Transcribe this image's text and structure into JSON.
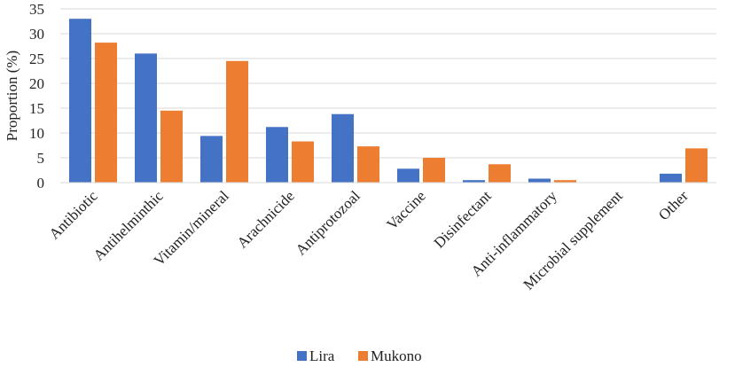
{
  "chart_data": {
    "type": "bar",
    "title": "",
    "xlabel": "",
    "ylabel": "Proportion (%)",
    "ylim": [
      0,
      35
    ],
    "yticks": [
      0,
      5,
      10,
      15,
      20,
      25,
      30,
      35
    ],
    "grid": true,
    "legend_position": "bottom",
    "categories": [
      "Antibiotic",
      "Antihelminthic",
      "Vitamin/mineral",
      "Arachnicide",
      "Antiprotozoal",
      "Vaccine",
      "Disinfectant",
      "Anti-inflammatory",
      "Microbial supplement",
      "Other"
    ],
    "series": [
      {
        "name": "Lira",
        "color": "#4472C4",
        "values": [
          33.0,
          26.0,
          9.4,
          11.2,
          13.8,
          2.8,
          0.5,
          0.8,
          0.0,
          1.8
        ]
      },
      {
        "name": "Mukono",
        "color": "#ED7D31",
        "values": [
          28.2,
          14.5,
          24.5,
          8.3,
          7.3,
          5.0,
          3.7,
          0.5,
          0.0,
          6.9
        ]
      }
    ]
  }
}
